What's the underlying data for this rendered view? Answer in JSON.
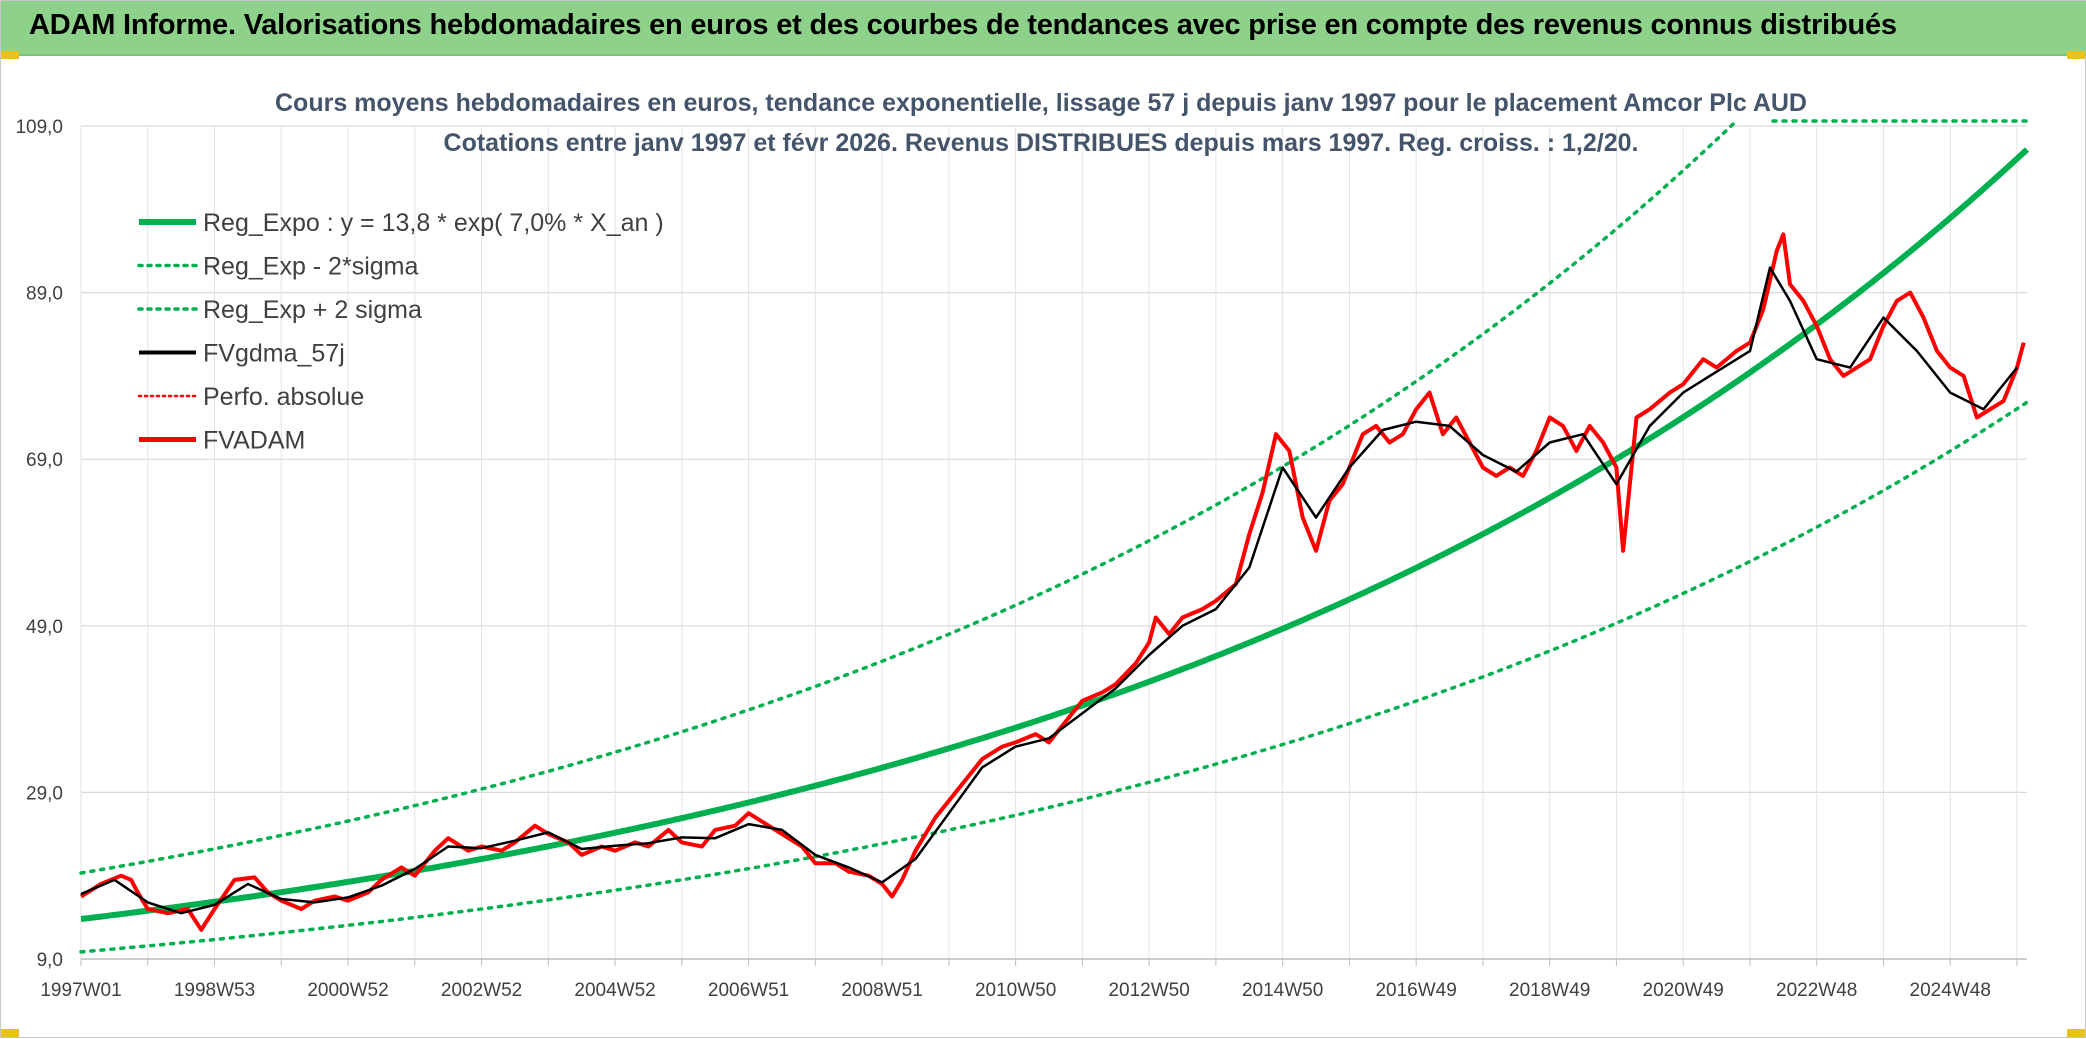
{
  "banner": {
    "title": "ADAM Informe. Valorisations hebdomadaires en euros et des courbes de tendances avec prise en compte des revenus connus distribués"
  },
  "colors": {
    "banner_bg": "#8ed18a",
    "trend_green": "#00b050",
    "price_red": "#ff0000",
    "smooth_black": "#000000",
    "title_text": "#44546a"
  },
  "chart_data": {
    "type": "line",
    "title_line1": "Cours moyens hebdomadaires en euros, tendance exponentielle, lissage 57 j depuis janv 1997 pour le placement Amcor Plc AUD",
    "title_line2": "Cotations entre janv 1997 et févr 2026. Revenus DISTRIBUES depuis mars 1997. Reg. croiss. : 1,2/20.",
    "x_range": [
      1997.0,
      2026.15
    ],
    "ylim": [
      9,
      109
    ],
    "yticks": [
      "9,0",
      "29,0",
      "49,0",
      "69,0",
      "89,0",
      "109,0"
    ],
    "ytick_values": [
      9,
      29,
      49,
      69,
      89,
      109
    ],
    "xticks": [
      "1997W01",
      "1998W53",
      "2000W52",
      "2002W52",
      "2004W52",
      "2006W51",
      "2008W51",
      "2010W50",
      "2012W50",
      "2014W50",
      "2016W49",
      "2018W49",
      "2020W49",
      "2022W48",
      "2024W48"
    ],
    "xtick_years": [
      1997.0,
      1999.0,
      2001.0,
      2003.0,
      2005.0,
      2007.0,
      2009.0,
      2011.0,
      2013.0,
      2015.0,
      2017.0,
      2019.0,
      2021.0,
      2023.0,
      2025.0
    ],
    "legend": [
      {
        "label": "Reg_Expo : y = 13,8 * exp( 7,0% *  X_an )",
        "style": "solid-green"
      },
      {
        "label": "Reg_Exp - 2*sigma",
        "style": "dotted-green"
      },
      {
        "label": "Reg_Exp + 2 sigma",
        "style": "dotted-green"
      },
      {
        "label": "FVgdma_57j",
        "style": "solid-black"
      },
      {
        "label": "Perfo. absolue",
        "style": "dotted-red"
      },
      {
        "label": "FVADAM",
        "style": "solid-red"
      }
    ],
    "regression": {
      "a": 13.8,
      "rate": 0.07
    },
    "band_factor": 1.4,
    "series": [
      {
        "name": "FVADAM",
        "x": [
          1997.0,
          1997.3,
          1997.6,
          1997.75,
          1997.85,
          1998.0,
          1998.3,
          1998.6,
          1998.8,
          1999.0,
          1999.3,
          1999.6,
          1999.8,
          2000.0,
          2000.3,
          2000.5,
          2000.8,
          2001.0,
          2001.3,
          2001.5,
          2001.8,
          2002.0,
          2002.3,
          2002.5,
          2002.8,
          2003.0,
          2003.3,
          2003.5,
          2003.8,
          2004.0,
          2004.3,
          2004.5,
          2004.8,
          2005.0,
          2005.3,
          2005.5,
          2005.8,
          2006.0,
          2006.3,
          2006.5,
          2006.8,
          2007.0,
          2007.3,
          2007.5,
          2007.8,
          2008.0,
          2008.3,
          2008.5,
          2008.8,
          2009.0,
          2009.15,
          2009.3,
          2009.5,
          2009.8,
          2010.0,
          2010.3,
          2010.5,
          2010.8,
          2011.0,
          2011.3,
          2011.5,
          2011.8,
          2012.0,
          2012.3,
          2012.5,
          2012.8,
          2013.0,
          2013.1,
          2013.3,
          2013.5,
          2013.8,
          2014.0,
          2014.3,
          2014.5,
          2014.7,
          2014.9,
          2015.1,
          2015.3,
          2015.5,
          2015.7,
          2015.9,
          2016.0,
          2016.2,
          2016.4,
          2016.6,
          2016.8,
          2017.0,
          2017.2,
          2017.4,
          2017.6,
          2017.8,
          2018.0,
          2018.2,
          2018.4,
          2018.6,
          2018.8,
          2019.0,
          2019.2,
          2019.4,
          2019.6,
          2019.8,
          2020.0,
          2020.1,
          2020.15,
          2020.3,
          2020.5,
          2020.8,
          2021.0,
          2021.3,
          2021.5,
          2021.8,
          2022.0,
          2022.2,
          2022.4,
          2022.5,
          2022.6,
          2022.8,
          2023.0,
          2023.2,
          2023.4,
          2023.6,
          2023.8,
          2024.0,
          2024.2,
          2024.4,
          2024.6,
          2024.8,
          2025.0,
          2025.2,
          2025.4,
          2025.6,
          2025.8,
          2026.0,
          2026.1
        ],
        "values": [
          16.5,
          18,
          19,
          18.5,
          17,
          15,
          14.5,
          15,
          12.5,
          15,
          18.5,
          18.8,
          17,
          16,
          15,
          16,
          16.5,
          16,
          17,
          18.5,
          20,
          19,
          22,
          23.5,
          22,
          22.5,
          22,
          23,
          25,
          24,
          23,
          21.5,
          22.5,
          22,
          23,
          22.5,
          24.5,
          23,
          22.5,
          24.5,
          25,
          26.5,
          25,
          24,
          22.5,
          20.5,
          20.5,
          19.5,
          19,
          18,
          16.5,
          18.5,
          22,
          26,
          28,
          31,
          33,
          34.5,
          35,
          36,
          35,
          38,
          40,
          41,
          42,
          44.5,
          47,
          50,
          48,
          50,
          51,
          52,
          54,
          60,
          65,
          72,
          70,
          62,
          58,
          64,
          66,
          68,
          72,
          73,
          71,
          72,
          75,
          77,
          72,
          74,
          71,
          68,
          67,
          68,
          67,
          70,
          74,
          73,
          70,
          73,
          71,
          68,
          58,
          62,
          74,
          75,
          77,
          78,
          81,
          80,
          82,
          83,
          87,
          94,
          96,
          90,
          88,
          85,
          81,
          79,
          80,
          81,
          85,
          88,
          89,
          86,
          82,
          80,
          79,
          74,
          75,
          76,
          80,
          83
        ]
      },
      {
        "name": "FVgdma_57j",
        "x": [
          1997.0,
          1997.5,
          1998.0,
          1998.5,
          1999.0,
          1999.5,
          2000.0,
          2000.5,
          2001.0,
          2001.5,
          2002.0,
          2002.5,
          2003.0,
          2003.5,
          2004.0,
          2004.5,
          2005.0,
          2005.5,
          2006.0,
          2006.5,
          2007.0,
          2007.5,
          2008.0,
          2008.5,
          2009.0,
          2009.5,
          2010.0,
          2010.5,
          2011.0,
          2011.5,
          2012.0,
          2012.5,
          2013.0,
          2013.5,
          2014.0,
          2014.5,
          2015.0,
          2015.5,
          2016.0,
          2016.5,
          2017.0,
          2017.5,
          2018.0,
          2018.5,
          2019.0,
          2019.5,
          2020.0,
          2020.5,
          2021.0,
          2021.5,
          2022.0,
          2022.3,
          2022.6,
          2023.0,
          2023.5,
          2024.0,
          2024.5,
          2025.0,
          2025.5,
          2026.0
        ],
        "values": [
          16.8,
          18.5,
          15.8,
          14.5,
          15.5,
          18,
          16.2,
          15.8,
          16.4,
          17.8,
          19.8,
          22.5,
          22.3,
          23.2,
          24.2,
          22.2,
          22.6,
          22.9,
          23.6,
          23.5,
          25.2,
          24.5,
          21.5,
          20,
          18.2,
          21,
          26.5,
          32,
          34.5,
          35.5,
          38.5,
          41.5,
          45.5,
          49,
          51,
          56,
          68,
          62,
          68,
          72.5,
          73.5,
          73,
          69.5,
          67.5,
          71,
          72,
          66,
          73,
          77,
          79.5,
          82,
          92,
          88,
          81,
          80,
          86,
          82,
          77,
          75,
          80
        ]
      }
    ]
  }
}
